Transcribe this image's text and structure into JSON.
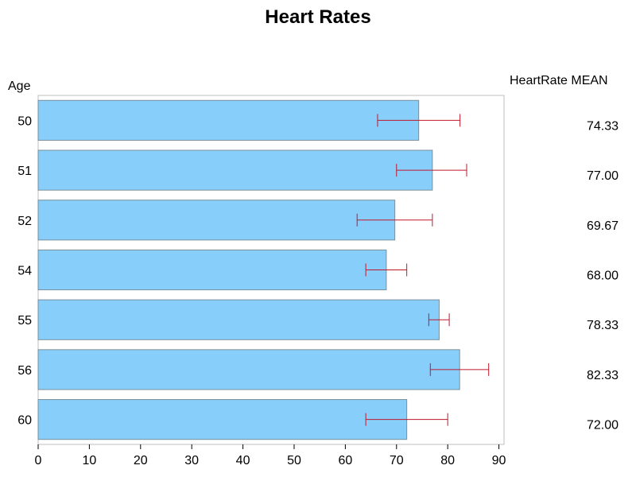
{
  "chart_data": {
    "type": "bar",
    "orientation": "horizontal",
    "title": "Heart Rates",
    "category_axis_label": "Age",
    "stat_column_header": "HeartRate MEAN",
    "categories": [
      "50",
      "51",
      "52",
      "54",
      "55",
      "56",
      "60"
    ],
    "values": [
      74.33,
      77.0,
      69.67,
      68.0,
      78.33,
      82.33,
      72.0
    ],
    "value_labels": [
      "74.33",
      "77.00",
      "69.67",
      "68.00",
      "78.33",
      "82.33",
      "72.00"
    ],
    "error_low": [
      66.3,
      70.0,
      62.3,
      64.0,
      76.3,
      76.6,
      64.0
    ],
    "error_high": [
      82.4,
      83.7,
      77.0,
      72.0,
      80.3,
      88.0,
      80.0
    ],
    "xlim": [
      0,
      91
    ],
    "xticks": [
      "0",
      "10",
      "20",
      "30",
      "40",
      "50",
      "60",
      "70",
      "80",
      "90"
    ],
    "grid": false,
    "colors": {
      "bar_fill": "#87cefa",
      "bar_stroke": "#7a8f9b",
      "error_bar": "#c0182a",
      "frame": "#bfbfbf"
    }
  }
}
